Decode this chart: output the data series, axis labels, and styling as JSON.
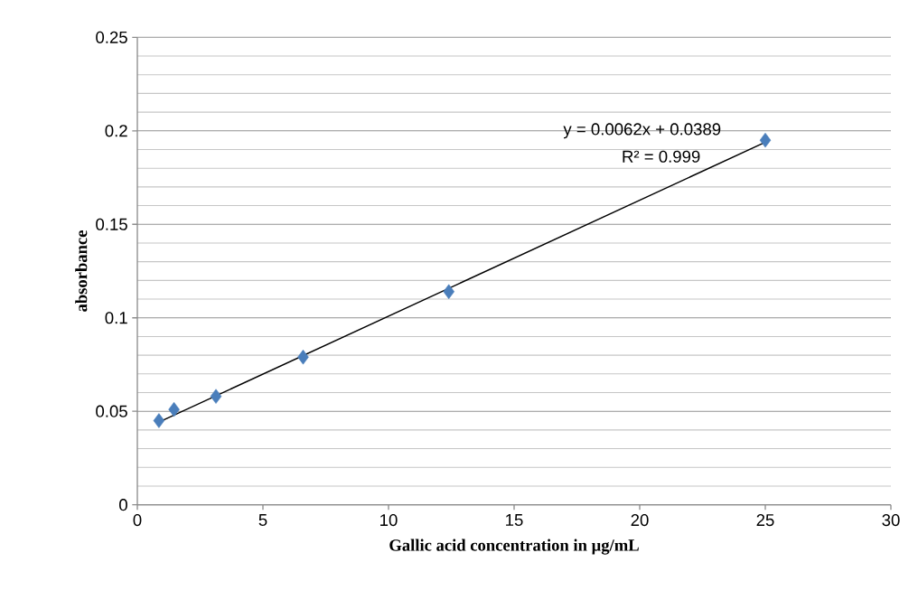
{
  "chart_data": {
    "type": "scatter",
    "xlabel": "Gallic acid concentration in µg/mL",
    "ylabel": "absorbance",
    "xlim": [
      0,
      30
    ],
    "xticks": [
      0,
      5,
      10,
      15,
      20,
      25,
      30
    ],
    "ylim": [
      0,
      0.25
    ],
    "yticks": [
      0,
      0.05,
      0.1,
      0.15,
      0.2,
      0.25
    ],
    "grid": "y",
    "series": [
      {
        "marker": "diamond",
        "color": "#4a7ebb",
        "x": [
          0.86,
          1.46,
          3.13,
          6.6,
          12.4,
          25
        ],
        "values": [
          0.045,
          0.051,
          0.058,
          0.079,
          0.114,
          0.195
        ]
      },
      {
        "type": "line",
        "marker": "none",
        "color": "#000000",
        "x": [
          0.86,
          25
        ],
        "values": [
          0.0442,
          0.1939
        ]
      }
    ],
    "annotations": [
      "y = 0.0062x + 0.0389",
      "R² = 0.999"
    ]
  }
}
